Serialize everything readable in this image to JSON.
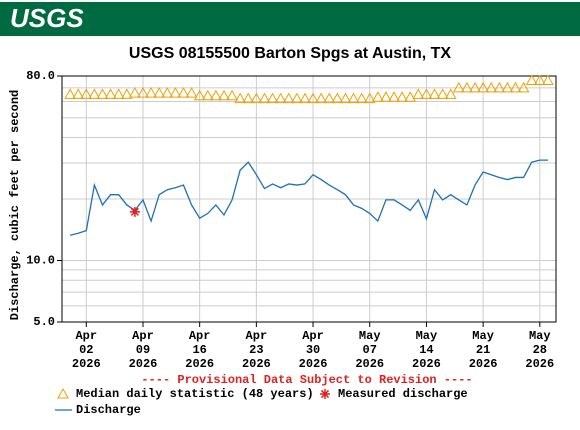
{
  "chart_data": {
    "type": "line",
    "logo": "USGS",
    "title": "USGS 08155500 Barton Spgs at Austin, TX",
    "y_label": "Discharge, cubic feet per second",
    "annotation": "---- Provisional Data Subject to Revision ----",
    "y_scale": "log",
    "grid": true,
    "ylim": [
      5,
      80
    ],
    "yticks": [
      {
        "value": 5,
        "label": "5.0"
      },
      {
        "value": 10,
        "label": "10.0"
      },
      {
        "value": 80,
        "label": "80.0"
      }
    ],
    "minor_yticks": [
      6,
      7,
      8,
      9,
      20,
      30,
      40,
      50,
      60,
      70
    ],
    "xlim": [
      "2026-03-30",
      "2026-05-30"
    ],
    "xticks": [
      {
        "value": "2026-04-02",
        "label": [
          "Apr",
          "02",
          "2026"
        ]
      },
      {
        "value": "2026-04-09",
        "label": [
          "Apr",
          "09",
          "2026"
        ]
      },
      {
        "value": "2026-04-16",
        "label": [
          "Apr",
          "16",
          "2026"
        ]
      },
      {
        "value": "2026-04-23",
        "label": [
          "Apr",
          "23",
          "2026"
        ]
      },
      {
        "value": "2026-04-30",
        "label": [
          "Apr",
          "30",
          "2026"
        ]
      },
      {
        "value": "2026-05-07",
        "label": [
          "May",
          "07",
          "2026"
        ]
      },
      {
        "value": "2026-05-14",
        "label": [
          "May",
          "14",
          "2026"
        ]
      },
      {
        "value": "2026-05-21",
        "label": [
          "May",
          "21",
          "2026"
        ]
      },
      {
        "value": "2026-05-28",
        "label": [
          "May",
          "28",
          "2026"
        ]
      }
    ],
    "x": [
      "2026-03-31",
      "2026-04-01",
      "2026-04-02",
      "2026-04-03",
      "2026-04-04",
      "2026-04-05",
      "2026-04-06",
      "2026-04-07",
      "2026-04-08",
      "2026-04-09",
      "2026-04-10",
      "2026-04-11",
      "2026-04-12",
      "2026-04-13",
      "2026-04-14",
      "2026-04-15",
      "2026-04-16",
      "2026-04-17",
      "2026-04-18",
      "2026-04-19",
      "2026-04-20",
      "2026-04-21",
      "2026-04-22",
      "2026-04-23",
      "2026-04-24",
      "2026-04-25",
      "2026-04-26",
      "2026-04-27",
      "2026-04-28",
      "2026-04-29",
      "2026-04-30",
      "2026-05-01",
      "2026-05-02",
      "2026-05-03",
      "2026-05-04",
      "2026-05-05",
      "2026-05-06",
      "2026-05-07",
      "2026-05-08",
      "2026-05-09",
      "2026-05-10",
      "2026-05-11",
      "2026-05-12",
      "2026-05-13",
      "2026-05-14",
      "2026-05-15",
      "2026-05-16",
      "2026-05-17",
      "2026-05-18",
      "2026-05-19",
      "2026-05-20",
      "2026-05-21",
      "2026-05-22",
      "2026-05-23",
      "2026-05-24",
      "2026-05-25",
      "2026-05-26",
      "2026-05-27",
      "2026-05-28",
      "2026-05-29"
    ],
    "series": [
      {
        "name": "Median daily statistic (48 years)",
        "color": "#f0a000",
        "marker": "triangle",
        "values": [
          65,
          65,
          65,
          65,
          65,
          65,
          65,
          65,
          66,
          66,
          66,
          66,
          66,
          66,
          66,
          66,
          64,
          64,
          64,
          64,
          64,
          62,
          62,
          62,
          62,
          62,
          62,
          62,
          62,
          62,
          62,
          62,
          62,
          62,
          62,
          62,
          62,
          62,
          63,
          63,
          63,
          63,
          63,
          65,
          65,
          65,
          65,
          65,
          70,
          70,
          70,
          70,
          70,
          70,
          70,
          70,
          70,
          76,
          76,
          76
        ]
      },
      {
        "name": "Discharge",
        "color": "#1f6fb4",
        "marker": "line",
        "values": [
          13.3,
          13.6,
          14,
          23.4,
          18.7,
          21,
          21,
          18.7,
          17.6,
          19.8,
          15.6,
          21,
          22.2,
          22.7,
          23.4,
          18.7,
          16.1,
          17,
          18.7,
          16.7,
          19.8,
          27.7,
          30.3,
          26.3,
          22.5,
          23.7,
          22.7,
          23.7,
          23.4,
          23.7,
          26.3,
          24.9,
          23.4,
          22.2,
          21,
          18.7,
          18,
          17,
          15.6,
          19.8,
          19.8,
          18.7,
          17.6,
          19.8,
          16,
          22.2,
          19.8,
          21,
          19.8,
          18.7,
          23.4,
          27.1,
          26.3,
          25.5,
          24.9,
          25.5,
          25.5,
          30.3,
          31,
          31
        ]
      },
      {
        "name": "Measured discharge",
        "color": "#e02020",
        "marker": "asterisk",
        "x": [
          "2026-04-08"
        ],
        "values": [
          17.3
        ]
      }
    ]
  }
}
